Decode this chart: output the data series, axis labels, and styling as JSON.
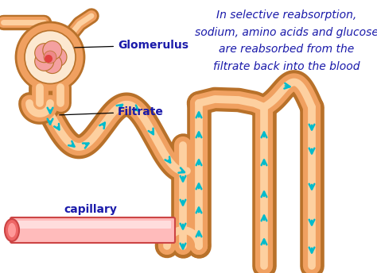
{
  "bg_color": "#ffffff",
  "tube_edge": "#b8712a",
  "tube_fill": "#f0a060",
  "tube_inner": "#fdd0a0",
  "glom_capsule": "#f0a060",
  "glom_space": "#fce8d0",
  "glom_tuft": "#f4a0a0",
  "glom_center": "#e04040",
  "cap_body": "#ffaaaa",
  "cap_edge": "#cc4444",
  "cap_left": "#ee5555",
  "arrow_color": "#00bbcc",
  "label_color": "#1a1aaa",
  "glomerulus_label": "Glomerulus",
  "filtrate_label": "Filtrate",
  "capillary_label": "capillary",
  "info_text": "In selective reabsorption,\nsodium, amino acids and glucose\nare reabsorbed from the\nfiltrate back into the blood",
  "label_fontsize": 10,
  "info_fontsize": 10
}
